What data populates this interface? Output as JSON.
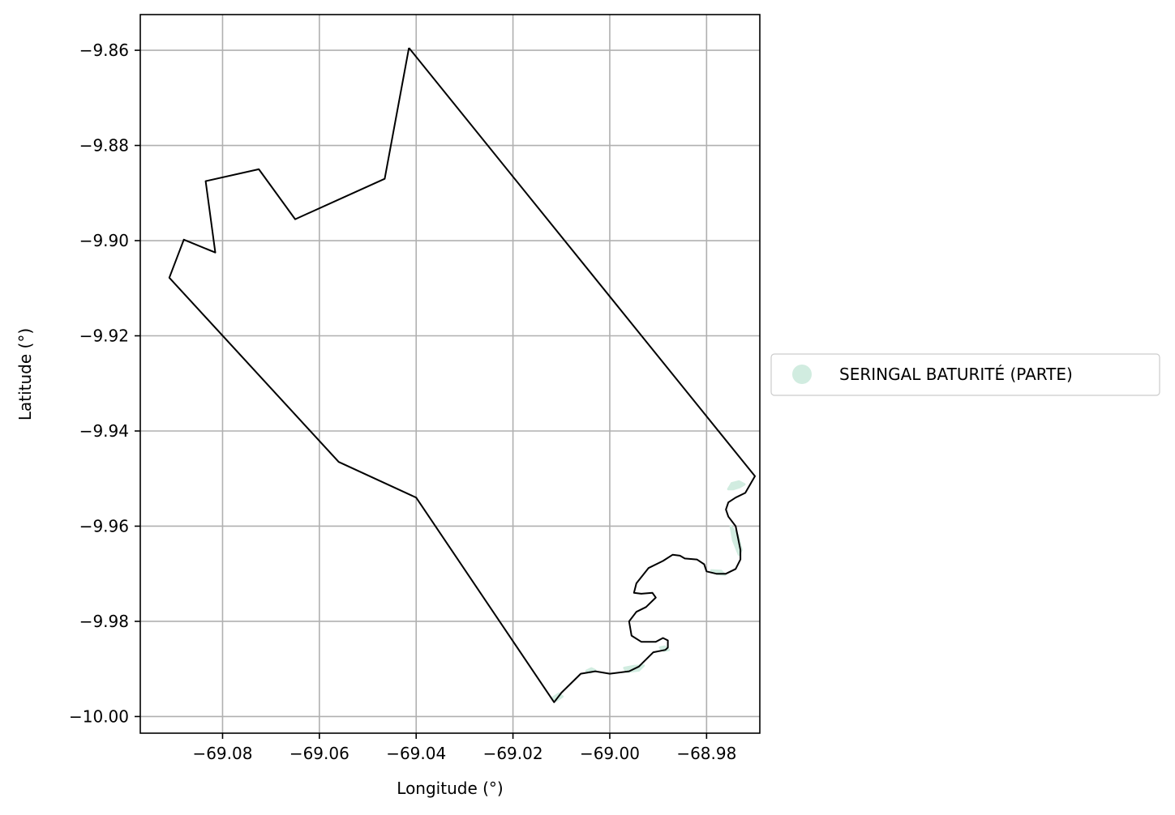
{
  "chart_data": {
    "type": "map",
    "xlabel": "Longitude (°)",
    "ylabel": "Latitude (°)",
    "xlim": [
      -69.097,
      -68.969
    ],
    "ylim": [
      -10.0035,
      -9.8525
    ],
    "grid": true,
    "x_ticks": [
      {
        "value": -69.08,
        "label": "−69.08"
      },
      {
        "value": -69.06,
        "label": "−69.06"
      },
      {
        "value": -69.04,
        "label": "−69.04"
      },
      {
        "value": -69.02,
        "label": "−69.02"
      },
      {
        "value": -69.0,
        "label": "−69.00"
      },
      {
        "value": -68.98,
        "label": "−68.98"
      }
    ],
    "y_ticks": [
      {
        "value": -9.86,
        "label": "−9.86"
      },
      {
        "value": -9.88,
        "label": "−9.88"
      },
      {
        "value": -9.9,
        "label": "−9.90"
      },
      {
        "value": -9.92,
        "label": "−9.92"
      },
      {
        "value": -9.94,
        "label": "−9.94"
      },
      {
        "value": -9.96,
        "label": "−9.96"
      },
      {
        "value": -9.98,
        "label": "−9.98"
      },
      {
        "value": -10.0,
        "label": "−10.00"
      }
    ],
    "legend": {
      "placement": "right",
      "entries": [
        {
          "label": "SERINGAL BATURITÉ (PARTE)",
          "color": "#d1ece0"
        }
      ]
    },
    "boundary": {
      "color": "#000000",
      "coords": [
        [
          -69.0415,
          -9.8595
        ],
        [
          -69.0465,
          -9.887
        ],
        [
          -69.065,
          -9.8955
        ],
        [
          -69.0725,
          -9.885
        ],
        [
          -69.0835,
          -9.8875
        ],
        [
          -69.0815,
          -9.9025
        ],
        [
          -69.088,
          -9.8998
        ],
        [
          -69.091,
          -9.9078
        ],
        [
          -69.056,
          -9.9465
        ],
        [
          -69.04,
          -9.954
        ],
        [
          -69.0115,
          -9.997
        ],
        [
          -69.01,
          -9.995
        ],
        [
          -69.006,
          -9.991
        ],
        [
          -69.003,
          -9.9905
        ],
        [
          -69.0,
          -9.991
        ],
        [
          -68.996,
          -9.9905
        ],
        [
          -68.994,
          -9.9895
        ],
        [
          -68.991,
          -9.9865
        ],
        [
          -68.9885,
          -9.986
        ],
        [
          -68.988,
          -9.9855
        ],
        [
          -68.988,
          -9.984
        ],
        [
          -68.989,
          -9.9835
        ],
        [
          -68.9905,
          -9.9843
        ],
        [
          -68.9935,
          -9.9843
        ],
        [
          -68.9955,
          -9.983
        ],
        [
          -68.996,
          -9.98
        ],
        [
          -68.9945,
          -9.978
        ],
        [
          -68.9925,
          -9.977
        ],
        [
          -68.9905,
          -9.975
        ],
        [
          -68.9912,
          -9.974
        ],
        [
          -68.9935,
          -9.9742
        ],
        [
          -68.995,
          -9.974
        ],
        [
          -68.9945,
          -9.972
        ],
        [
          -68.992,
          -9.9688
        ],
        [
          -68.989,
          -9.9673
        ],
        [
          -68.987,
          -9.966
        ],
        [
          -68.9855,
          -9.9662
        ],
        [
          -68.9845,
          -9.9668
        ],
        [
          -68.982,
          -9.967
        ],
        [
          -68.9805,
          -9.968
        ],
        [
          -68.98,
          -9.9695
        ],
        [
          -68.978,
          -9.97
        ],
        [
          -68.976,
          -9.97
        ],
        [
          -68.974,
          -9.969
        ],
        [
          -68.973,
          -9.967
        ],
        [
          -68.973,
          -9.965
        ],
        [
          -68.974,
          -9.96
        ],
        [
          -68.9755,
          -9.958
        ],
        [
          -68.976,
          -9.9565
        ],
        [
          -68.9755,
          -9.955
        ],
        [
          -68.974,
          -9.954
        ],
        [
          -68.972,
          -9.953
        ],
        [
          -68.97,
          -9.9495
        ],
        [
          -69.0415,
          -9.8595
        ]
      ]
    },
    "fill_segments": [
      {
        "color": "#d1ece0",
        "coords": [
          [
            -68.9755,
            -9.9522
          ],
          [
            -68.9748,
            -9.951
          ],
          [
            -68.9733,
            -9.9506
          ],
          [
            -68.9722,
            -9.9512
          ],
          [
            -68.9732,
            -9.9518
          ],
          [
            -68.9745,
            -9.9522
          ]
        ]
      },
      {
        "color": "#d1ece0",
        "coords": [
          [
            -68.975,
            -9.96
          ],
          [
            -68.9735,
            -9.962
          ],
          [
            -68.9728,
            -9.965
          ],
          [
            -68.9733,
            -9.966
          ],
          [
            -68.9745,
            -9.963
          ]
        ]
      },
      {
        "color": "#d1ece0",
        "coords": [
          [
            -68.979,
            -9.9693
          ],
          [
            -68.9778,
            -9.97
          ],
          [
            -68.9762,
            -9.9702
          ],
          [
            -68.977,
            -9.9694
          ]
        ]
      },
      {
        "color": "#d1ece0",
        "coords": [
          [
            -68.9896,
            -9.9855
          ],
          [
            -68.9888,
            -9.9862
          ],
          [
            -68.9878,
            -9.986
          ],
          [
            -68.9886,
            -9.9853
          ]
        ]
      },
      {
        "color": "#d1ece0",
        "coords": [
          [
            -68.997,
            -9.9898
          ],
          [
            -68.995,
            -9.9894
          ],
          [
            -68.993,
            -9.9893
          ],
          [
            -68.994,
            -9.9903
          ],
          [
            -68.9965,
            -9.9906
          ]
        ]
      },
      {
        "color": "#d1ece0",
        "coords": [
          [
            -69.0048,
            -9.9904
          ],
          [
            -69.0038,
            -9.9899
          ],
          [
            -69.003,
            -9.9903
          ],
          [
            -69.004,
            -9.9907
          ]
        ]
      },
      {
        "color": "#d1ece0",
        "coords": [
          [
            -69.012,
            -9.9962
          ],
          [
            -69.0105,
            -9.9952
          ],
          [
            -69.0098,
            -9.9958
          ],
          [
            -69.011,
            -9.9966
          ]
        ]
      }
    ]
  }
}
